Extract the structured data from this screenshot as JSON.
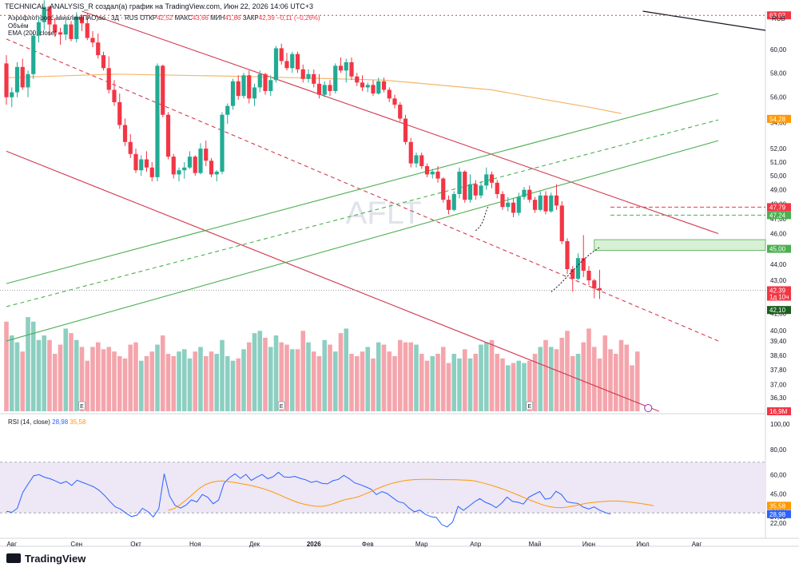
{
  "header": {
    "text": "TECHNICAL_ANALYSIS_R создал(а) график на TradingView.com, Июн 22, 2026 14:06 UTC+3"
  },
  "legend": {
    "name": "Аэрофлот-росс.авиалин(ПАО)ао · 3Д · RUS",
    "open_label": "ОТКР",
    "open": "42,52",
    "high_label": "МАКС",
    "high": "43,66",
    "low_label": "МИН",
    "low": "41,86",
    "close_label": "ЗАКР",
    "close": "42,39",
    "change": "−0,11 (−0,26%)",
    "volume_label": "Объём",
    "ema_label": "EMA (200, close)"
  },
  "rsi_legend": {
    "label": "RSI (14, close)",
    "rsi": "28,98",
    "ma": "35,58"
  },
  "currency": "RUB",
  "watermark": "AFLT",
  "logo": "TradingView",
  "colors": {
    "up": "#22ab94",
    "down": "#f23645",
    "ema": "#f5b66a",
    "channel_red": "#d23a4f",
    "channel_green": "#4caf50",
    "rsi": "#2962ff",
    "rsi_ma": "#ff9800",
    "rsi_band": "#ede7f6"
  },
  "chart_data": [
    {
      "type": "candlestick",
      "title": "Аэрофлот-росс.авиалин(ПАО)ао · 3Д · RUS",
      "ylim": [
        35.6,
        63.4
      ],
      "y_ticks": [
        "63,00",
        "60,00",
        "58,00",
        "56,00",
        "54,00",
        "52,00",
        "51,00",
        "50,00",
        "49,00",
        "48,00",
        "47,00",
        "46,00",
        "45,00",
        "44,00",
        "43,00",
        "42,00",
        "41,00",
        "40,00",
        "39,40",
        "38,60",
        "37,80",
        "37,00",
        "36,30",
        "35,60"
      ],
      "x_ticks": [
        "Авг",
        "Сен",
        "Окт",
        "Ноя",
        "Дек",
        "2026",
        "Фев",
        "Мар",
        "Апр",
        "Май",
        "Июн",
        "Июл",
        "Авг"
      ],
      "candles": [
        [
          58.8,
          59.5,
          55.4,
          56.0
        ],
        [
          56.0,
          56.8,
          55.2,
          56.4
        ],
        [
          56.4,
          58.9,
          56.0,
          58.5
        ],
        [
          58.5,
          59.2,
          56.6,
          56.8
        ],
        [
          56.8,
          58.2,
          56.0,
          57.9
        ],
        [
          57.9,
          61.5,
          57.5,
          61.2
        ],
        [
          61.2,
          63.0,
          60.6,
          62.4
        ],
        [
          62.4,
          64.4,
          61.7,
          63.8
        ],
        [
          63.8,
          63.9,
          61.2,
          62.2
        ],
        [
          62.2,
          62.8,
          61.1,
          61.5
        ],
        [
          61.5,
          61.9,
          60.4,
          61.3
        ],
        [
          61.3,
          62.6,
          60.8,
          62.2
        ],
        [
          62.2,
          62.5,
          60.7,
          60.9
        ],
        [
          60.9,
          63.3,
          60.6,
          62.9
        ],
        [
          62.9,
          63.1,
          61.6,
          62.3
        ],
        [
          62.3,
          63.2,
          60.8,
          61.0
        ],
        [
          61.0,
          61.6,
          60.2,
          60.6
        ],
        [
          60.6,
          61.4,
          59.2,
          59.5
        ],
        [
          59.5,
          59.8,
          58.2,
          58.4
        ],
        [
          58.4,
          59.4,
          56.3,
          56.6
        ],
        [
          56.6,
          57.4,
          55.3,
          55.6
        ],
        [
          55.6,
          56.3,
          53.5,
          53.8
        ],
        [
          53.8,
          54.3,
          52.2,
          52.5
        ],
        [
          52.5,
          53.1,
          51.3,
          51.6
        ],
        [
          51.6,
          52.0,
          50.2,
          50.4
        ],
        [
          50.4,
          51.5,
          50.0,
          51.2
        ],
        [
          51.2,
          51.8,
          50.3,
          50.6
        ],
        [
          50.6,
          51.0,
          49.6,
          49.9
        ],
        [
          49.9,
          58.8,
          49.6,
          58.6
        ],
        [
          58.6,
          58.7,
          54.4,
          54.6
        ],
        [
          54.6,
          54.8,
          51.2,
          51.4
        ],
        [
          51.4,
          51.6,
          49.8,
          50.1
        ],
        [
          50.1,
          50.6,
          49.6,
          50.4
        ],
        [
          50.4,
          51.0,
          49.8,
          50.6
        ],
        [
          50.6,
          51.8,
          50.5,
          51.4
        ],
        [
          51.4,
          51.5,
          50.0,
          50.2
        ],
        [
          50.2,
          52.4,
          50.1,
          52.0
        ],
        [
          52.0,
          52.6,
          50.7,
          51.1
        ],
        [
          51.1,
          51.3,
          49.9,
          50.1
        ],
        [
          50.1,
          50.4,
          49.6,
          50.3
        ],
        [
          50.3,
          54.8,
          50.1,
          54.6
        ],
        [
          54.6,
          55.5,
          53.9,
          55.3
        ],
        [
          55.3,
          57.5,
          55.0,
          57.3
        ],
        [
          57.3,
          57.8,
          55.8,
          56.1
        ],
        [
          56.1,
          58.0,
          55.9,
          57.8
        ],
        [
          57.8,
          58.2,
          55.5,
          55.9
        ],
        [
          55.9,
          57.1,
          55.3,
          56.8
        ],
        [
          56.8,
          58.2,
          56.4,
          57.9
        ],
        [
          57.9,
          58.0,
          56.2,
          56.5
        ],
        [
          56.5,
          57.8,
          56.1,
          57.4
        ],
        [
          57.4,
          60.3,
          57.2,
          60.1
        ],
        [
          60.1,
          60.5,
          58.7,
          59.0
        ],
        [
          59.0,
          59.7,
          58.2,
          58.4
        ],
        [
          58.4,
          59.8,
          58.0,
          59.6
        ],
        [
          59.6,
          59.8,
          58.0,
          58.3
        ],
        [
          58.3,
          58.7,
          57.2,
          57.5
        ],
        [
          57.5,
          58.3,
          57.2,
          57.9
        ],
        [
          57.9,
          58.3,
          56.8,
          57.1
        ],
        [
          57.1,
          57.9,
          55.9,
          56.2
        ],
        [
          56.2,
          57.3,
          56.0,
          57.0
        ],
        [
          57.0,
          57.4,
          56.1,
          56.5
        ],
        [
          56.5,
          58.8,
          56.3,
          58.6
        ],
        [
          58.6,
          59.3,
          58.0,
          58.2
        ],
        [
          58.2,
          59.2,
          57.2,
          58.9
        ],
        [
          58.9,
          59.3,
          57.4,
          57.7
        ],
        [
          57.7,
          58.0,
          56.9,
          57.2
        ],
        [
          57.2,
          57.8,
          56.5,
          56.8
        ],
        [
          56.8,
          57.2,
          56.4,
          57.0
        ],
        [
          57.0,
          57.4,
          56.1,
          56.3
        ],
        [
          56.3,
          57.6,
          56.2,
          57.3
        ],
        [
          57.3,
          57.6,
          56.4,
          56.6
        ],
        [
          56.6,
          56.8,
          55.6,
          55.9
        ],
        [
          55.9,
          56.2,
          55.1,
          55.4
        ],
        [
          55.4,
          55.6,
          54.1,
          54.3
        ],
        [
          54.3,
          54.6,
          52.3,
          52.5
        ],
        [
          52.5,
          52.8,
          50.6,
          50.9
        ],
        [
          50.9,
          51.7,
          50.6,
          51.5
        ],
        [
          51.5,
          51.7,
          50.5,
          50.7
        ],
        [
          50.7,
          50.9,
          49.9,
          50.1
        ],
        [
          50.1,
          50.5,
          49.8,
          50.3
        ],
        [
          50.3,
          50.7,
          49.5,
          49.8
        ],
        [
          49.8,
          49.9,
          48.1,
          48.3
        ],
        [
          48.3,
          48.6,
          47.3,
          47.6
        ],
        [
          47.6,
          48.9,
          47.5,
          48.7
        ],
        [
          48.7,
          50.6,
          48.4,
          50.3
        ],
        [
          50.3,
          50.4,
          48.1,
          48.3
        ],
        [
          48.3,
          50.1,
          48.1,
          49.4
        ],
        [
          49.4,
          49.7,
          48.3,
          48.6
        ],
        [
          48.6,
          49.6,
          48.4,
          49.3
        ],
        [
          49.3,
          50.6,
          49.0,
          50.1
        ],
        [
          50.1,
          50.3,
          49.1,
          49.5
        ],
        [
          49.5,
          49.7,
          48.4,
          48.7
        ],
        [
          48.7,
          48.9,
          47.6,
          47.8
        ],
        [
          47.8,
          48.5,
          47.5,
          48.1
        ],
        [
          48.1,
          48.4,
          47.1,
          47.4
        ],
        [
          47.4,
          48.8,
          47.2,
          48.5
        ],
        [
          48.5,
          49.2,
          48.3,
          49.0
        ],
        [
          49.0,
          49.3,
          48.1,
          48.3
        ],
        [
          48.3,
          48.5,
          47.4,
          47.6
        ],
        [
          47.6,
          48.9,
          47.5,
          48.6
        ],
        [
          48.6,
          48.9,
          47.3,
          47.5
        ],
        [
          47.5,
          48.8,
          47.4,
          48.6
        ],
        [
          48.6,
          49.4,
          47.6,
          47.9
        ],
        [
          47.9,
          48.2,
          45.3,
          45.5
        ],
        [
          45.5,
          45.7,
          43.4,
          43.7
        ],
        [
          43.7,
          43.9,
          42.3,
          43.1
        ],
        [
          43.1,
          44.7,
          43.0,
          44.4
        ],
        [
          44.4,
          45.9,
          43.2,
          43.6
        ],
        [
          43.6,
          43.9,
          42.7,
          43.0
        ],
        [
          43.0,
          43.1,
          41.9,
          42.5
        ],
        [
          42.52,
          43.66,
          41.86,
          42.39
        ]
      ],
      "ema200_points": [
        [
          0,
          57.6
        ],
        [
          20,
          57.9
        ],
        [
          45,
          57.7
        ],
        [
          70,
          57.4
        ],
        [
          90,
          56.6
        ],
        [
          100,
          55.8
        ],
        [
          108,
          55.2
        ],
        [
          114,
          54.7
        ]
      ],
      "channels": [
        {
          "name": "descending-upper",
          "color": "red",
          "style": "solid",
          "from": [
            14,
            63.4
          ],
          "to": [
            132,
            46.0
          ]
        },
        {
          "name": "descending-mid",
          "color": "red",
          "style": "dashed",
          "from": [
            0,
            60.9
          ],
          "to": [
            132,
            39.4
          ]
        },
        {
          "name": "descending-lower",
          "color": "red",
          "style": "solid",
          "from": [
            0,
            51.8
          ],
          "to": [
            121,
            35.6
          ]
        },
        {
          "name": "ascending-upper",
          "color": "green",
          "style": "solid",
          "from": [
            0,
            42.8
          ],
          "to": [
            132,
            56.3
          ]
        },
        {
          "name": "ascending-mid",
          "color": "green",
          "style": "dashed",
          "from": [
            0,
            41.4
          ],
          "to": [
            132,
            54.2
          ]
        },
        {
          "name": "ascending-lower",
          "color": "green",
          "style": "solid",
          "from": [
            0,
            39.4
          ],
          "to": [
            132,
            52.6
          ]
        }
      ],
      "zone": {
        "from_index": 109,
        "to_index": 132,
        "low": 44.9,
        "high": 45.6
      },
      "hlines": [
        {
          "value": 63.02,
          "style": "dotted",
          "color": "red"
        },
        {
          "value": 47.79,
          "style": "dashed",
          "color": "red"
        },
        {
          "value": 47.24,
          "style": "dashed",
          "color": "green"
        }
      ],
      "price_labels": [
        {
          "text": "63,02",
          "color": "#f23645"
        },
        {
          "text": "54,28",
          "color": "#ff9800"
        },
        {
          "text": "47,79",
          "color": "#f23645"
        },
        {
          "text": "47,24",
          "color": "#4caf50"
        },
        {
          "text": "45,00",
          "color": "#4caf50"
        },
        {
          "text": "42,39",
          "color": "#f23645"
        },
        {
          "text": "1д 10ч",
          "color": "#f23645"
        },
        {
          "text": "42,10",
          "color": "#1b5e20"
        },
        {
          "text": "16,9M",
          "color": "#f23645"
        }
      ],
      "earnings_markers": [
        {
          "index": 14,
          "text": "E"
        },
        {
          "index": 51,
          "text": "E"
        },
        {
          "index": 97,
          "text": "E"
        }
      ],
      "volume": [
        39,
        33,
        30,
        26,
        41,
        39,
        31,
        33,
        31,
        25,
        29,
        36,
        34,
        31,
        28,
        22,
        28,
        30,
        27,
        28,
        26,
        24,
        23,
        29,
        30,
        22,
        24,
        26,
        29,
        33,
        25,
        24,
        26,
        27,
        23,
        26,
        28,
        24,
        26,
        25,
        31,
        24,
        22,
        23,
        27,
        30,
        34,
        35,
        32,
        28,
        33,
        30,
        29,
        27,
        27,
        35,
        30,
        26,
        24,
        31,
        29,
        26,
        34,
        36,
        25,
        24,
        26,
        28,
        23,
        30,
        29,
        26,
        24,
        31,
        30,
        30,
        29,
        25,
        22,
        24,
        25,
        28,
        21,
        25,
        23,
        27,
        23,
        25,
        29,
        30,
        31,
        25,
        23,
        20,
        21,
        22,
        21,
        22,
        25,
        28,
        31,
        28,
        27,
        32,
        35,
        24,
        25,
        30,
        36,
        28,
        23,
        33,
        27,
        25,
        31,
        29,
        20,
        26
      ]
    },
    {
      "type": "line",
      "title": "RSI (14, close)",
      "ylim": [
        17.5,
        102
      ],
      "y_ticks": [
        "100,00",
        "80,00",
        "60,00",
        "45,00",
        "33,00",
        "27,00",
        "22,00"
      ],
      "bands": [
        30,
        70
      ],
      "series": [
        {
          "name": "RSI",
          "color": "#2962ff",
          "values": [
            31.2,
            30.4,
            33.5,
            46.0,
            52.8,
            59.3,
            60.2,
            58.1,
            57.0,
            55.2,
            53.2,
            54.8,
            51.6,
            55.8,
            54.0,
            52.4,
            50.6,
            47.9,
            43.9,
            39.1,
            34.8,
            32.9,
            29.7,
            27.0,
            28.2,
            33.6,
            31.0,
            26.8,
            33.2,
            60.8,
            43.2,
            35.9,
            33.8,
            36.1,
            40.2,
            38.6,
            44.5,
            42.3,
            37.2,
            40.1,
            53.4,
            57.8,
            60.8,
            57.2,
            60.4,
            55.6,
            58.1,
            60.3,
            57.0,
            58.5,
            62.0,
            58.4,
            58.0,
            58.8,
            57.2,
            56.1,
            54.1,
            55.0,
            53.3,
            52.9,
            55.4,
            56.4,
            59.6,
            57.0,
            53.7,
            52.3,
            50.6,
            48.7,
            44.4,
            46.8,
            45.2,
            41.9,
            38.8,
            37.8,
            33.7,
            30.8,
            32.2,
            28.8,
            27.0,
            26.3,
            20.7,
            18.9,
            22.8,
            35.1,
            32.0,
            35.2,
            38.6,
            41.2,
            38.4,
            36.7,
            34.1,
            37.7,
            42.5,
            39.0,
            38.4,
            36.9,
            42.3,
            44.6,
            46.8,
            40.8,
            41.6,
            47.0,
            44.4,
            38.8,
            37.9,
            37.5,
            34.6,
            33.1,
            34.7,
            32.1,
            30.3,
            28.98
          ]
        },
        {
          "name": "MA",
          "color": "#ff9800",
          "values": [
            32.0,
            33.4,
            36.7,
            40.5,
            44.8,
            49.0,
            52.2,
            54.0,
            55.0,
            55.2,
            54.5,
            53.8,
            52.9,
            52.1,
            51.0,
            49.7,
            48.3,
            46.5,
            44.5,
            42.3,
            40.2,
            38.4,
            37.0,
            35.9,
            35.2,
            35.1,
            35.9,
            37.4,
            39.2,
            40.7,
            41.6,
            42.8,
            44.8,
            46.9,
            49.0,
            51.0,
            52.7,
            54.0,
            55.0,
            55.8,
            56.2,
            56.5,
            56.5,
            56.4,
            56.3,
            56.2,
            56.2,
            56.1,
            55.9,
            55.7,
            55.1,
            53.9,
            52.6,
            51.2,
            49.6,
            47.9,
            46.0,
            44.0,
            41.9,
            39.9,
            38.0,
            36.3,
            35.0,
            34.2,
            34.1,
            34.6,
            35.5,
            36.5,
            37.5,
            38.1,
            38.6,
            39.0,
            39.3,
            39.3,
            39.0,
            38.6,
            38.0,
            37.3,
            36.6,
            35.58
          ]
        }
      ]
    }
  ]
}
